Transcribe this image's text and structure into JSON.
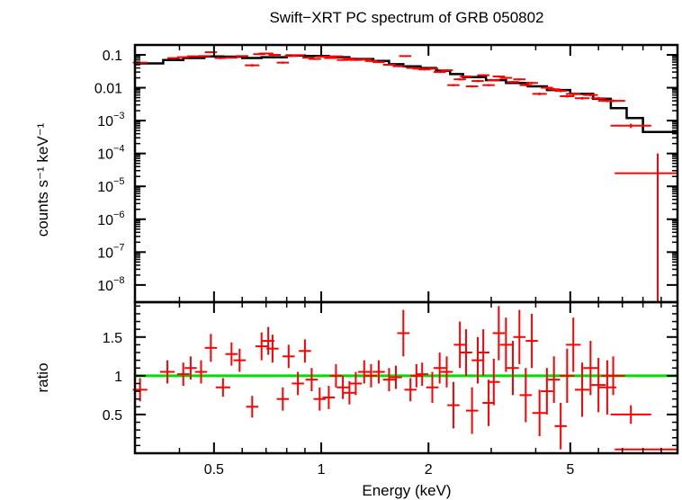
{
  "chart_data": [
    {
      "type": "scatter",
      "title": "Swift−XRT PC spectrum of GRB 050802",
      "ylabel": "counts s⁻¹ keV⁻¹",
      "xlabel": "",
      "xscale": "log",
      "yscale": "log",
      "xlim": [
        0.3,
        10
      ],
      "ylim": [
        3e-09,
        0.2
      ],
      "y_ticks": [
        {
          "value": 0.1,
          "label": "0.1"
        },
        {
          "value": 0.01,
          "label": "0.01"
        },
        {
          "value": 0.001,
          "base": "10",
          "exp": "−3"
        },
        {
          "value": 0.0001,
          "base": "10",
          "exp": "−4"
        },
        {
          "value": 1e-05,
          "base": "10",
          "exp": "−5"
        },
        {
          "value": 1e-06,
          "base": "10",
          "exp": "−6"
        },
        {
          "value": 1e-07,
          "base": "10",
          "exp": "−7"
        },
        {
          "value": 1e-08,
          "base": "10",
          "exp": "−8"
        }
      ],
      "colors": {
        "data": "#ff0000",
        "model": "#000000"
      },
      "model_step": [
        [
          0.3,
          0.055
        ],
        [
          0.36,
          0.07
        ],
        [
          0.41,
          0.08
        ],
        [
          0.47,
          0.09
        ],
        [
          0.53,
          0.088
        ],
        [
          0.6,
          0.08
        ],
        [
          0.68,
          0.085
        ],
        [
          0.8,
          0.095
        ],
        [
          0.9,
          0.092
        ],
        [
          1.05,
          0.085
        ],
        [
          1.2,
          0.075
        ],
        [
          1.4,
          0.065
        ],
        [
          1.55,
          0.052
        ],
        [
          1.7,
          0.045
        ],
        [
          1.9,
          0.04
        ],
        [
          2.1,
          0.033
        ],
        [
          2.3,
          0.026
        ],
        [
          2.5,
          0.021
        ],
        [
          2.9,
          0.017
        ],
        [
          3.3,
          0.014
        ],
        [
          3.8,
          0.011
        ],
        [
          4.3,
          0.0085
        ],
        [
          5.0,
          0.0065
        ],
        [
          5.8,
          0.0046
        ],
        [
          6.5,
          0.0024
        ],
        [
          7.2,
          0.0012
        ],
        [
          8.0,
          0.00045
        ],
        [
          10.0,
          0.00045
        ]
      ],
      "series": [
        {
          "points": [
            [
              0.31,
              0.058,
              0.012,
              0.025
            ],
            [
              0.385,
              0.08,
              0.01,
              0.015
            ],
            [
              0.41,
              0.085,
              0.01,
              0.015
            ],
            [
              0.44,
              0.09,
              0.012,
              0.02
            ],
            [
              0.47,
              0.092,
              0.01,
              0.018
            ],
            [
              0.49,
              0.12,
              0.01,
              0.02
            ],
            [
              0.52,
              0.08,
              0.009,
              0.025
            ],
            [
              0.56,
              0.082,
              0.01,
              0.018
            ],
            [
              0.6,
              0.092,
              0.01,
              0.018
            ],
            [
              0.64,
              0.048,
              0.012,
              0.03
            ],
            [
              0.67,
              0.105,
              0.01,
              0.018
            ],
            [
              0.7,
              0.11,
              0.012,
              0.02
            ],
            [
              0.74,
              0.1,
              0.01,
              0.018
            ],
            [
              0.78,
              0.058,
              0.01,
              0.025
            ],
            [
              0.82,
              0.092,
              0.01,
              0.018
            ],
            [
              0.86,
              0.098,
              0.01,
              0.018
            ],
            [
              0.92,
              0.082,
              0.01,
              0.02
            ],
            [
              0.96,
              0.075,
              0.01,
              0.02
            ],
            [
              1.01,
              0.088,
              0.01,
              0.018
            ],
            [
              1.06,
              0.08,
              0.01,
              0.018
            ],
            [
              1.1,
              0.09,
              0.012,
              0.018
            ],
            [
              1.15,
              0.07,
              0.01,
              0.02
            ],
            [
              1.2,
              0.078,
              0.01,
              0.02
            ],
            [
              1.25,
              0.07,
              0.01,
              0.02
            ],
            [
              1.32,
              0.072,
              0.012,
              0.02
            ],
            [
              1.38,
              0.065,
              0.01,
              0.02
            ],
            [
              1.45,
              0.06,
              0.01,
              0.02
            ],
            [
              1.55,
              0.05,
              0.01,
              0.02
            ],
            [
              1.65,
              0.045,
              0.01,
              0.02
            ],
            [
              1.72,
              0.092,
              0.01,
              0.018
            ],
            [
              1.8,
              0.04,
              0.01,
              0.02
            ],
            [
              1.88,
              0.038,
              0.01,
              0.02
            ],
            [
              1.95,
              0.036,
              0.01,
              0.02
            ],
            [
              2.05,
              0.038,
              0.01,
              0.02
            ],
            [
              2.15,
              0.03,
              0.01,
              0.02
            ],
            [
              2.25,
              0.034,
              0.01,
              0.02
            ],
            [
              2.35,
              0.012,
              0.01,
              0.025
            ],
            [
              2.45,
              0.018,
              0.01,
              0.025
            ],
            [
              2.55,
              0.022,
              0.01,
              0.025
            ],
            [
              2.65,
              0.011,
              0.01,
              0.025
            ],
            [
              2.75,
              0.016,
              0.01,
              0.025
            ],
            [
              2.85,
              0.024,
              0.01,
              0.025
            ],
            [
              2.95,
              0.012,
              0.01,
              0.025
            ],
            [
              3.05,
              0.017,
              0.01,
              0.025
            ],
            [
              3.15,
              0.022,
              0.01,
              0.025
            ],
            [
              3.3,
              0.02,
              0.01,
              0.025
            ],
            [
              3.45,
              0.015,
              0.01,
              0.025
            ],
            [
              3.6,
              0.018,
              0.01,
              0.025
            ],
            [
              3.75,
              0.012,
              0.01,
              0.025
            ],
            [
              3.9,
              0.014,
              0.01,
              0.025
            ],
            [
              4.1,
              0.0065,
              0.012,
              0.03
            ],
            [
              4.3,
              0.01,
              0.01,
              0.03
            ],
            [
              4.5,
              0.009,
              0.01,
              0.03
            ],
            [
              4.7,
              0.008,
              0.01,
              0.03
            ],
            [
              4.9,
              0.0055,
              0.012,
              0.03
            ],
            [
              5.1,
              0.0065,
              0.012,
              0.03
            ],
            [
              5.4,
              0.0048,
              0.012,
              0.03
            ],
            [
              5.7,
              0.006,
              0.012,
              0.03
            ],
            [
              6.0,
              0.0048,
              0.012,
              0.03
            ],
            [
              6.35,
              0.004,
              0.015,
              0.03
            ],
            [
              6.6,
              0.004,
              0.02,
              0.03
            ],
            [
              7.4,
              0.0007,
              0.035,
              0.05
            ],
            [
              8.8,
              2.5e-05,
              0.08,
              1.0
            ]
          ]
        }
      ]
    },
    {
      "type": "scatter",
      "xlabel": "Energy (keV)",
      "ylabel": "ratio",
      "xscale": "log",
      "xlim": [
        0.3,
        10
      ],
      "ylim": [
        0,
        1.95
      ],
      "x_ticks": [
        0.5,
        1,
        2,
        5
      ],
      "y_ticks": [
        {
          "value": 0.5,
          "label": "0.5"
        },
        {
          "value": 1,
          "label": "1"
        },
        {
          "value": 1.5,
          "label": "1.5"
        }
      ],
      "reference_line": 1,
      "colors": {
        "data": "#ff0000",
        "reference": "#00dd00"
      },
      "series": [
        {
          "points": [
            [
              0.31,
              0.82,
              0.012,
              0.15
            ],
            [
              0.37,
              1.05,
              0.012,
              0.15
            ],
            [
              0.41,
              1.02,
              0.01,
              0.15
            ],
            [
              0.43,
              1.1,
              0.01,
              0.15
            ],
            [
              0.46,
              1.05,
              0.01,
              0.15
            ],
            [
              0.49,
              1.36,
              0.01,
              0.18
            ],
            [
              0.53,
              0.85,
              0.012,
              0.12
            ],
            [
              0.56,
              1.28,
              0.01,
              0.15
            ],
            [
              0.59,
              1.2,
              0.01,
              0.15
            ],
            [
              0.64,
              0.6,
              0.01,
              0.14
            ],
            [
              0.68,
              1.38,
              0.01,
              0.18
            ],
            [
              0.71,
              1.45,
              0.01,
              0.18
            ],
            [
              0.73,
              1.35,
              0.01,
              0.18
            ],
            [
              0.78,
              0.7,
              0.01,
              0.15
            ],
            [
              0.81,
              1.25,
              0.01,
              0.15
            ],
            [
              0.86,
              0.9,
              0.01,
              0.15
            ],
            [
              0.9,
              1.32,
              0.01,
              0.15
            ],
            [
              0.94,
              0.95,
              0.01,
              0.15
            ],
            [
              0.99,
              0.7,
              0.01,
              0.15
            ],
            [
              1.05,
              0.72,
              0.01,
              0.15
            ],
            [
              1.1,
              1.0,
              0.01,
              0.15
            ],
            [
              1.15,
              0.85,
              0.01,
              0.15
            ],
            [
              1.2,
              0.78,
              0.01,
              0.15
            ],
            [
              1.25,
              0.9,
              0.01,
              0.15
            ],
            [
              1.32,
              1.05,
              0.01,
              0.15
            ],
            [
              1.38,
              1.0,
              0.01,
              0.15
            ],
            [
              1.45,
              1.05,
              0.01,
              0.15
            ],
            [
              1.55,
              0.95,
              0.01,
              0.15
            ],
            [
              1.62,
              0.98,
              0.01,
              0.15
            ],
            [
              1.7,
              1.55,
              0.01,
              0.3
            ],
            [
              1.78,
              0.82,
              0.01,
              0.15
            ],
            [
              1.85,
              1.0,
              0.01,
              0.15
            ],
            [
              1.92,
              1.02,
              0.01,
              0.15
            ],
            [
              2.05,
              0.85,
              0.01,
              0.2
            ],
            [
              2.15,
              1.1,
              0.01,
              0.2
            ],
            [
              2.25,
              1.05,
              0.01,
              0.2
            ],
            [
              2.35,
              0.62,
              0.01,
              0.3
            ],
            [
              2.45,
              1.4,
              0.01,
              0.3
            ],
            [
              2.55,
              1.3,
              0.01,
              0.3
            ],
            [
              2.65,
              0.55,
              0.01,
              0.3
            ],
            [
              2.75,
              1.2,
              0.01,
              0.3
            ],
            [
              2.85,
              1.3,
              0.01,
              0.3
            ],
            [
              2.95,
              0.65,
              0.01,
              0.3
            ],
            [
              3.05,
              0.92,
              0.01,
              0.3
            ],
            [
              3.15,
              1.55,
              0.01,
              0.35
            ],
            [
              3.3,
              1.4,
              0.01,
              0.35
            ],
            [
              3.45,
              1.1,
              0.01,
              0.35
            ],
            [
              3.6,
              1.5,
              0.01,
              0.35
            ],
            [
              3.75,
              0.75,
              0.01,
              0.35
            ],
            [
              3.9,
              1.45,
              0.01,
              0.35
            ],
            [
              4.1,
              0.52,
              0.012,
              0.3
            ],
            [
              4.3,
              0.8,
              0.01,
              0.3
            ],
            [
              4.5,
              0.95,
              0.01,
              0.3
            ],
            [
              4.7,
              0.35,
              0.01,
              0.3
            ],
            [
              4.9,
              1.0,
              0.012,
              0.35
            ],
            [
              5.1,
              1.4,
              0.012,
              0.35
            ],
            [
              5.4,
              0.82,
              0.012,
              0.35
            ],
            [
              5.7,
              1.1,
              0.012,
              0.35
            ],
            [
              6.0,
              0.88,
              0.012,
              0.35
            ],
            [
              6.35,
              0.85,
              0.015,
              0.35
            ],
            [
              6.6,
              1.0,
              0.02,
              0.25
            ],
            [
              7.4,
              0.5,
              0.035,
              0.12
            ],
            [
              8.8,
              0.05,
              0.08,
              0.0
            ]
          ]
        }
      ]
    }
  ]
}
